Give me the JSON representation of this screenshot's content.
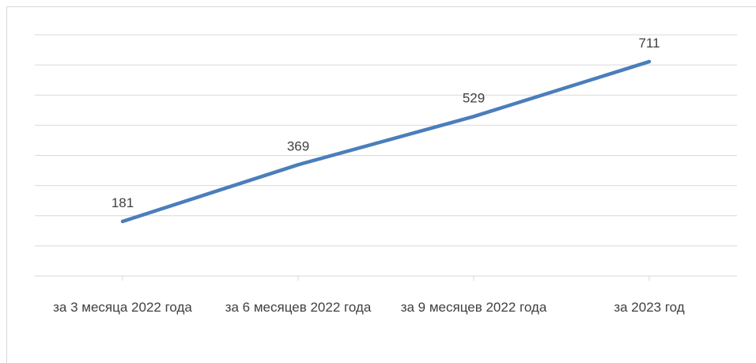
{
  "chart_data": {
    "type": "line",
    "categories": [
      "за 3 месяца 2022 года",
      "за 6 месяцев 2022 года",
      "за 9 месяцев 2022 года",
      "за 2023 год"
    ],
    "series": [
      {
        "name": null,
        "color": "#4a7ebb",
        "values": [
          181,
          369,
          529,
          711
        ]
      }
    ],
    "ylim": [
      0,
      800
    ],
    "yticks": [
      0,
      100,
      200,
      300,
      400,
      500,
      600,
      700,
      800
    ],
    "grid": true,
    "data_labels": true
  }
}
